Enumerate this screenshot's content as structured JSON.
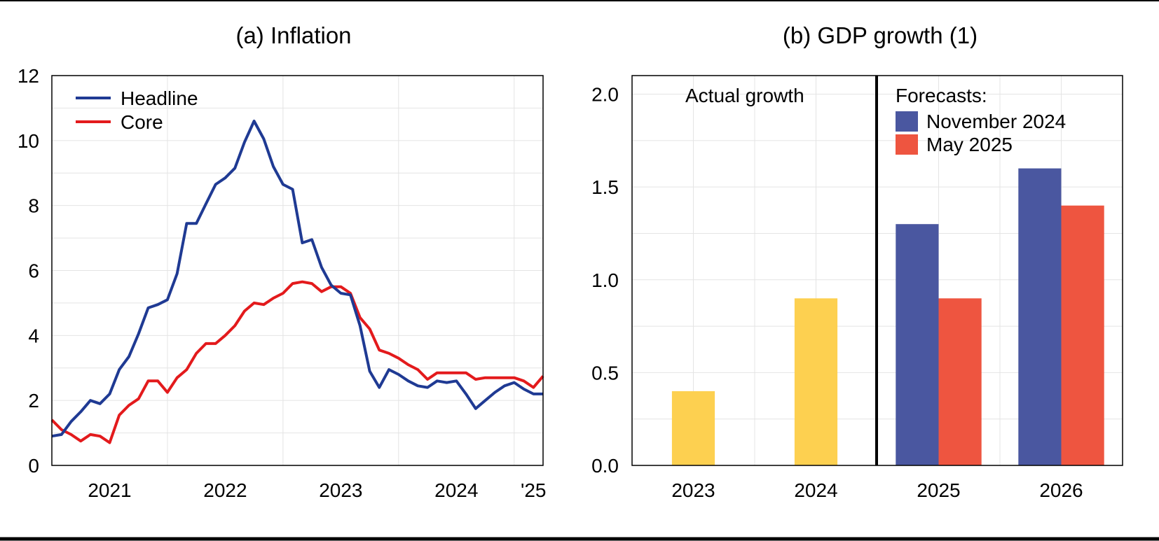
{
  "colors": {
    "headline": "#1f3a93",
    "core": "#e31a1c",
    "actual": "#fdd050",
    "nov2024": "#4a57a0",
    "may2025": "#ee5540",
    "grid": "#e4e4e4",
    "axis": "#000000"
  },
  "chart_data": [
    {
      "type": "line",
      "title": "(a) Inflation",
      "xlabel": "",
      "ylabel": "",
      "ylim": [
        0,
        12
      ],
      "yticks": [
        0,
        2,
        4,
        6,
        8,
        10,
        12
      ],
      "x_ticks": [
        {
          "label": "2021",
          "month_index": 6
        },
        {
          "label": "2022",
          "month_index": 18
        },
        {
          "label": "2023",
          "month_index": 30
        },
        {
          "label": "2024",
          "month_index": 42
        },
        {
          "label": "'25",
          "month_index": 50
        }
      ],
      "grid_month_indices": [
        12,
        24,
        36,
        48
      ],
      "xlim_month_index": [
        0,
        51
      ],
      "x_start": "2020-07",
      "legend": {
        "position": "top-left",
        "entries": [
          "Headline",
          "Core"
        ]
      },
      "series": [
        {
          "name": "Headline",
          "color_key": "headline",
          "values": [
            0.9,
            0.95,
            1.35,
            1.65,
            2.0,
            1.9,
            2.2,
            2.95,
            3.35,
            4.05,
            4.85,
            4.95,
            5.1,
            5.9,
            7.45,
            7.45,
            8.05,
            8.65,
            8.85,
            9.15,
            9.95,
            10.6,
            10.05,
            9.2,
            8.65,
            8.5,
            6.85,
            6.95,
            6.1,
            5.55,
            5.3,
            5.25,
            4.3,
            2.9,
            2.4,
            2.95,
            2.8,
            2.6,
            2.45,
            2.4,
            2.6,
            2.55,
            2.6,
            2.2,
            1.75,
            2.0,
            2.25,
            2.45,
            2.55,
            2.35,
            2.2,
            2.2
          ]
        },
        {
          "name": "Core",
          "color_key": "core",
          "values": [
            1.4,
            1.1,
            0.95,
            0.75,
            0.95,
            0.9,
            0.7,
            1.55,
            1.85,
            2.05,
            2.6,
            2.6,
            2.25,
            2.7,
            2.95,
            3.45,
            3.75,
            3.75,
            4.0,
            4.3,
            4.75,
            5.0,
            4.95,
            5.15,
            5.3,
            5.6,
            5.65,
            5.6,
            5.35,
            5.5,
            5.5,
            5.3,
            4.55,
            4.2,
            3.55,
            3.45,
            3.3,
            3.1,
            2.95,
            2.65,
            2.85,
            2.85,
            2.85,
            2.85,
            2.65,
            2.7,
            2.7,
            2.7,
            2.7,
            2.6,
            2.4,
            2.75
          ]
        }
      ]
    },
    {
      "type": "bar",
      "title": "(b) GDP growth (1)",
      "xlabel": "",
      "ylabel": "",
      "ylim": [
        0,
        2.1
      ],
      "yticks": [
        "0.0",
        "0.5",
        "1.0",
        "1.5",
        "2.0"
      ],
      "categories": [
        "2023",
        "2024",
        "2025",
        "2026"
      ],
      "annotations": {
        "actual": "Actual growth",
        "forecasts": "Forecasts:"
      },
      "legend": {
        "position": "top-right",
        "entries": [
          "November 2024",
          "May 2025"
        ]
      },
      "series": [
        {
          "name": "Actual growth",
          "color_key": "actual",
          "values": [
            0.4,
            0.9,
            null,
            null
          ]
        },
        {
          "name": "November 2024",
          "color_key": "nov2024",
          "values": [
            null,
            null,
            1.3,
            1.6
          ]
        },
        {
          "name": "May 2025",
          "color_key": "may2025",
          "values": [
            null,
            null,
            0.9,
            1.4
          ]
        }
      ]
    }
  ]
}
